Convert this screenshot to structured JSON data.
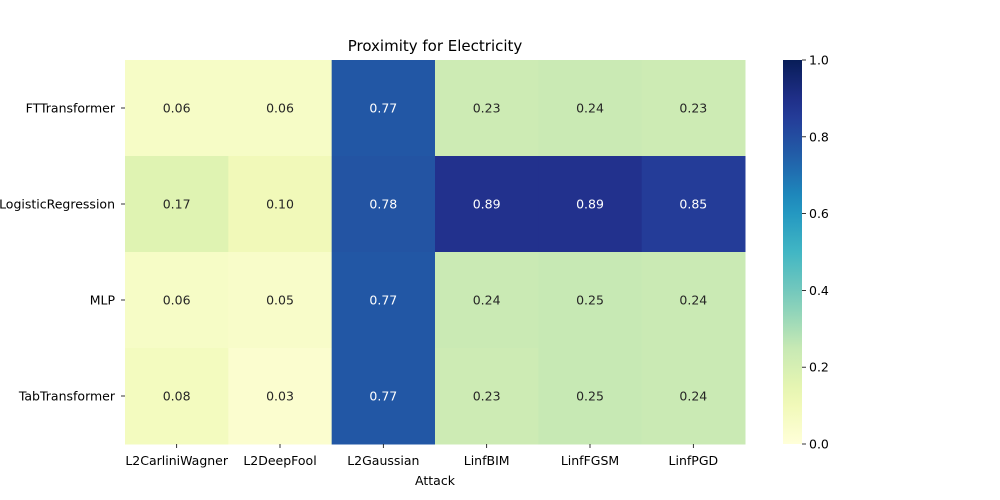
{
  "chart_data": {
    "type": "heatmap",
    "title": "Proximity for Electricity",
    "xlabel": "Attack",
    "ylabel": "",
    "x_categories": [
      "L2CarliniWagner",
      "L2DeepFool",
      "L2Gaussian",
      "LinfBIM",
      "LinfFGSM",
      "LinfPGD"
    ],
    "y_categories": [
      "FTTransformer",
      "LogisticRegression",
      "MLP",
      "TabTransformer"
    ],
    "values": [
      [
        0.06,
        0.06,
        0.77,
        0.23,
        0.24,
        0.23
      ],
      [
        0.17,
        0.1,
        0.78,
        0.89,
        0.89,
        0.85
      ],
      [
        0.06,
        0.05,
        0.77,
        0.24,
        0.25,
        0.24
      ],
      [
        0.08,
        0.03,
        0.77,
        0.23,
        0.25,
        0.24
      ]
    ],
    "value_format": "0.00",
    "colormap": "YlGnBu",
    "vmin": 0.0,
    "vmax": 1.0,
    "colorbar_ticks": [
      "0.0",
      "0.2",
      "0.4",
      "0.6",
      "0.8",
      "1.0"
    ],
    "grid": false
  }
}
